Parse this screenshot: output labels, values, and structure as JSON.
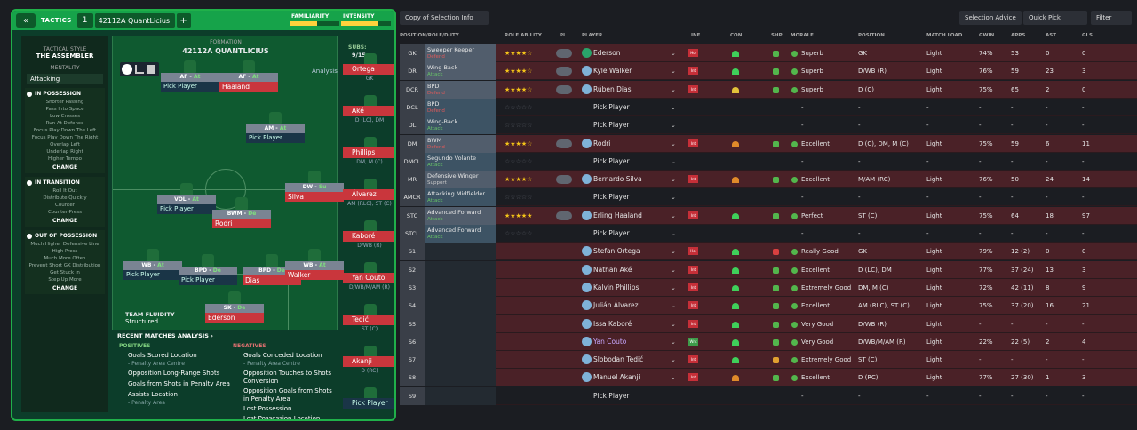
{
  "tactics": {
    "back": "«",
    "title": "TACTICS",
    "slot": "1",
    "name": "42112A QuantLicius",
    "add": "+",
    "familiarity": "FAMILIARITY",
    "familiarity_level": 0.55,
    "intensity": "INTENSITY",
    "intensity_level": 0.75
  },
  "sidebar": {
    "style_cap": "TACTICAL STYLE",
    "style": "THE ASSEMBLER",
    "mentality_cap": "MENTALITY",
    "mentality": "Attacking",
    "in_possession": {
      "title": "IN POSSESSION",
      "items": [
        "Shorter Passing",
        "Pass Into Space",
        "Low Crosses",
        "Run At Defence",
        "Focus Play Down The Left",
        "Focus Play Down The Right",
        "Overlap Left",
        "Underlap Right",
        "Higher Tempo"
      ]
    },
    "in_transition": {
      "title": "IN TRANSITION",
      "items": [
        "Roll It Out",
        "Distribute Quickly",
        "Counter",
        "Counter-Press"
      ]
    },
    "out_possession": {
      "title": "OUT OF POSSESSION",
      "items": [
        "Much Higher Defensive Line",
        "High Press",
        "Much More Often",
        "Prevent Short GK Distribution",
        "Get Stuck In",
        "Step Up More"
      ]
    },
    "change": "CHANGE"
  },
  "pitch": {
    "formation_cap": "FORMATION",
    "formation": "42112A QUANTLICIUS",
    "analysis": "Analysis",
    "fluidity_cap": "TEAM FLUIDITY",
    "fluidity": "Structured",
    "players": [
      {
        "role": "AF",
        "duty": "At",
        "name": "Pick Player",
        "empty": true
      },
      {
        "role": "AF",
        "duty": "At",
        "name": "Haaland"
      },
      {
        "role": "AM",
        "duty": "At",
        "name": "Pick Player",
        "empty": true
      },
      {
        "role": "DW",
        "duty": "Su",
        "name": "Silva"
      },
      {
        "role": "VOL",
        "duty": "At",
        "name": "Pick Player",
        "empty": true
      },
      {
        "role": "BWM",
        "duty": "De",
        "name": "Rodri"
      },
      {
        "role": "WB",
        "duty": "At",
        "name": "Pick Player",
        "empty": true
      },
      {
        "role": "BPD",
        "duty": "De",
        "name": "Pick Player",
        "empty": true
      },
      {
        "role": "BPD",
        "duty": "De",
        "name": "Dias"
      },
      {
        "role": "WB",
        "duty": "At",
        "name": "Walker"
      },
      {
        "role": "SK",
        "duty": "De",
        "name": "Ederson"
      }
    ]
  },
  "subs": {
    "label": "SUBS:",
    "count": "9/15",
    "items": [
      {
        "name": "Ortega",
        "pos": "GK"
      },
      {
        "name": "Aké",
        "pos": "D (LC), DM"
      },
      {
        "name": "Phillips",
        "pos": "DM, M (C)"
      },
      {
        "name": "Álvarez",
        "pos": "AM (RLC), ST (C)"
      },
      {
        "name": "Kaboré",
        "pos": "D/WB (R)"
      },
      {
        "name": "Yan Couto",
        "pos": "D/WB/M/AM (R)"
      },
      {
        "name": "Tedić",
        "pos": "ST (C)"
      },
      {
        "name": "Akanji",
        "pos": "D (RC)"
      },
      {
        "name": "Pick Player",
        "pos": ""
      }
    ]
  },
  "analysis": {
    "title": "RECENT MATCHES ANALYSIS ›",
    "positives_cap": "POSITIVES",
    "negatives_cap": "NEGATIVES",
    "positives": [
      {
        "t": "Goals Scored Location",
        "s": "- Penalty Area Centre"
      },
      {
        "t": "Opposition Long-Range Shots",
        "s": ""
      },
      {
        "t": "Goals from Shots in Penalty Area",
        "s": ""
      },
      {
        "t": "Assists Location",
        "s": "- Penalty Area"
      }
    ],
    "negatives": [
      {
        "t": "Goals Conceded Location",
        "s": "- Penalty Area Centre"
      },
      {
        "t": "Opposition Touches to Shots Conversion",
        "s": ""
      },
      {
        "t": "Opposition Goals from Shots in Penalty Area",
        "s": ""
      },
      {
        "t": "Lost Possession",
        "s": ""
      },
      {
        "t": "Lost Possession Location",
        "s": ""
      }
    ]
  },
  "toolbar": {
    "copy": "Copy of Selection Info",
    "advice": "Selection Advice",
    "quick": "Quick Pick",
    "filter": "Filter"
  },
  "headers": [
    "POSITION/ROLE/DUTY",
    "ROLE ABILITY",
    "PI",
    "PLAYER",
    "INF",
    "CON",
    "SHP",
    "MORALE",
    "POSITION",
    "MATCH LOAD",
    "GWIN",
    "APPS",
    "AST",
    "GLS"
  ],
  "rows": [
    {
      "pos": "GK",
      "role": "Sweeper Keeper",
      "duty": "Defend",
      "dc": "d",
      "stars": 3.5,
      "pi": true,
      "name": "Ederson",
      "inj": "Hol",
      "con": "#3fd05a",
      "shp": "#53b64c",
      "morale": "Superb",
      "position": "GK",
      "load": "Light",
      "gw": "74%",
      "apps": "53",
      "ast": "0",
      "gls": "0"
    },
    {
      "pos": "DR",
      "role": "Wing-Back",
      "duty": "Attack",
      "dc": "a",
      "stars": 4,
      "pi": true,
      "name": "Kyle Walker",
      "inj": "Int",
      "con": "#3fd05a",
      "shp": "#53b64c",
      "morale": "Superb",
      "position": "D/WB (R)",
      "load": "Light",
      "gw": "76%",
      "apps": "59",
      "ast": "23",
      "gls": "3"
    },
    {
      "pos": "DCR",
      "role": "BPD",
      "duty": "Defend",
      "dc": "d",
      "stars": 4,
      "pi": true,
      "name": "Rúben Dias",
      "inj": "Int",
      "con": "#e3c23a",
      "shp": "#53b64c",
      "morale": "Superb",
      "position": "D (C)",
      "load": "Light",
      "gw": "75%",
      "apps": "65",
      "ast": "2",
      "gls": "0"
    },
    {
      "pos": "DCL",
      "role": "BPD",
      "duty": "Defend",
      "dc": "d",
      "stars": 0,
      "pi": false,
      "name": "Pick Player",
      "empty": true
    },
    {
      "pos": "DL",
      "role": "Wing-Back",
      "duty": "Attack",
      "dc": "a",
      "stars": 0,
      "pi": false,
      "name": "Pick Player",
      "empty": true
    },
    {
      "pos": "DM",
      "role": "BWM",
      "duty": "Defend",
      "dc": "d",
      "stars": 4,
      "pi": true,
      "name": "Rodri",
      "inj": "Int",
      "con": "#e08a2a",
      "shp": "#53b64c",
      "morale": "Excellent",
      "position": "D (C), DM, M (C)",
      "load": "Light",
      "gw": "75%",
      "apps": "59",
      "ast": "6",
      "gls": "11"
    },
    {
      "pos": "DMCL",
      "role": "Segundo Volante",
      "duty": "Attack",
      "dc": "a",
      "stars": 0,
      "pi": false,
      "name": "Pick Player",
      "empty": true
    },
    {
      "pos": "MR",
      "role": "Defensive Winger",
      "duty": "Support",
      "dc": "s",
      "stars": 3.5,
      "pi": true,
      "name": "Bernardo Silva",
      "inj": "Int",
      "con": "#e08a2a",
      "shp": "#53b64c",
      "morale": "Excellent",
      "position": "M/AM (RC)",
      "load": "Light",
      "gw": "76%",
      "apps": "50",
      "ast": "24",
      "gls": "14"
    },
    {
      "pos": "AMCR",
      "role": "Attacking Midfielder",
      "duty": "Attack",
      "dc": "a",
      "stars": 0,
      "pi": false,
      "name": "Pick Player",
      "empty": true
    },
    {
      "pos": "STC",
      "role": "Advanced Forward",
      "duty": "Attack",
      "dc": "a",
      "stars": 5,
      "pi": true,
      "name": "Erling Haaland",
      "inj": "Int",
      "con": "#3fd05a",
      "shp": "#53b64c",
      "morale": "Perfect",
      "position": "ST (C)",
      "load": "Light",
      "gw": "75%",
      "apps": "64",
      "ast": "18",
      "gls": "97"
    },
    {
      "pos": "STCL",
      "role": "Advanced Forward",
      "duty": "Attack",
      "dc": "a",
      "stars": 0,
      "pi": false,
      "name": "Pick Player",
      "empty": true
    },
    {
      "pos": "S1",
      "name": "Stefan Ortega",
      "inj": "Hol",
      "con": "#3fd05a",
      "shp": "#d94040",
      "morale": "Really Good",
      "position": "GK",
      "load": "Light",
      "gw": "79%",
      "apps": "12 (2)",
      "ast": "0",
      "gls": "0",
      "sub": true
    },
    {
      "pos": "S2",
      "name": "Nathan Aké",
      "inj": "Int",
      "con": "#3fd05a",
      "shp": "#53b64c",
      "morale": "Excellent",
      "position": "D (LC), DM",
      "load": "Light",
      "gw": "77%",
      "apps": "37 (24)",
      "ast": "13",
      "gls": "3",
      "sub": true
    },
    {
      "pos": "S3",
      "name": "Kalvin Phillips",
      "inj": "Int",
      "con": "#3fd05a",
      "shp": "#53b64c",
      "morale": "Extremely Good",
      "position": "DM, M (C)",
      "load": "Light",
      "gw": "72%",
      "apps": "42 (11)",
      "ast": "8",
      "gls": "9",
      "sub": true
    },
    {
      "pos": "S4",
      "name": "Julián Álvarez",
      "inj": "Int",
      "con": "#3fd05a",
      "shp": "#53b64c",
      "morale": "Excellent",
      "position": "AM (RLC), ST (C)",
      "load": "Light",
      "gw": "75%",
      "apps": "37 (20)",
      "ast": "16",
      "gls": "21",
      "sub": true
    },
    {
      "pos": "S5",
      "name": "Issa Kaboré",
      "inj": "Int",
      "con": "#3fd05a",
      "shp": "#53b64c",
      "morale": "Very Good",
      "position": "D/WB (R)",
      "load": "Light",
      "gw": "",
      "apps": "",
      "ast": "",
      "gls": "",
      "sub": true
    },
    {
      "pos": "S6",
      "name": "Yan Couto",
      "inj": "Wnt",
      "con": "#3fd05a",
      "shp": "#53b64c",
      "morale": "Very Good",
      "position": "D/WB/M/AM (R)",
      "load": "Light",
      "gw": "22%",
      "apps": "22 (5)",
      "ast": "2",
      "gls": "4",
      "sub": true
    },
    {
      "pos": "S7",
      "name": "Slobodan Tedić",
      "inj": "Int",
      "con": "#3fd05a",
      "shp": "#e0a030",
      "morale": "Extremely Good",
      "position": "ST (C)",
      "load": "Light",
      "gw": "",
      "apps": "",
      "ast": "",
      "gls": "",
      "sub": true
    },
    {
      "pos": "S8",
      "name": "Manuel Akanji",
      "inj": "Int",
      "con": "#e08a2a",
      "shp": "#53b64c",
      "morale": "Excellent",
      "position": "D (RC)",
      "load": "Light",
      "gw": "77%",
      "apps": "27 (30)",
      "ast": "1",
      "gls": "3",
      "sub": true
    },
    {
      "pos": "S9",
      "name": "Pick Player",
      "empty": true,
      "sub": true
    }
  ],
  "dash": "-"
}
